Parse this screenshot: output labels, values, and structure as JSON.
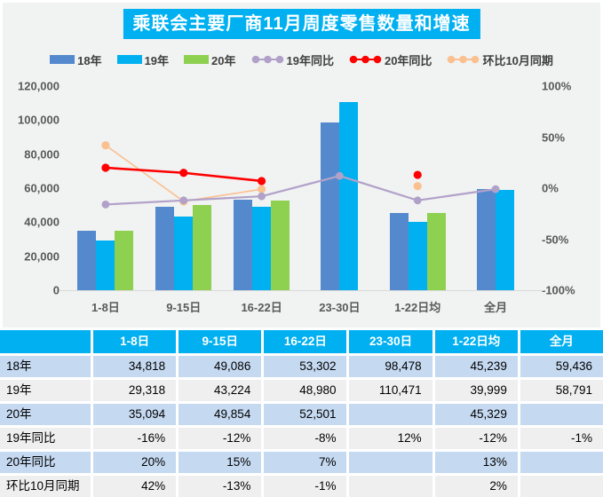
{
  "title": "乘联会主要厂商11月周度零售数量和增速",
  "colors": {
    "accent_cyan": "#00B0F0",
    "bar_18": "#5489CE",
    "bar_19": "#00B0F0",
    "bar_20": "#8ED04F",
    "line_yoy19": "#B1A1C9",
    "line_yoy20": "#FE0000",
    "line_mom": "#FAC090",
    "panel_bg": "#F1F2F2",
    "axis_text": "#595959",
    "row_blue": "#C5D9F1",
    "row_gray": "#EFEFEF"
  },
  "legend": [
    {
      "label": "18年",
      "type": "bar",
      "color": "#5489CE"
    },
    {
      "label": "19年",
      "type": "bar",
      "color": "#00B0F0"
    },
    {
      "label": "20年",
      "type": "bar",
      "color": "#8ED04F"
    },
    {
      "label": "19年同比",
      "type": "line",
      "color": "#B1A1C9"
    },
    {
      "label": "20年同比",
      "type": "line",
      "color": "#FE0000"
    },
    {
      "label": "环比10月同期",
      "type": "line",
      "color": "#FAC090"
    }
  ],
  "chart_data": {
    "type": "bar+line",
    "categories": [
      "1-8日",
      "9-15日",
      "16-22日",
      "23-30日",
      "1-22日均",
      "全月"
    ],
    "bar_series": [
      {
        "name": "18年",
        "color": "#5489CE",
        "values": [
          34818,
          49086,
          53302,
          98478,
          45239,
          59436
        ]
      },
      {
        "name": "19年",
        "color": "#00B0F0",
        "values": [
          29318,
          43224,
          48980,
          110471,
          39999,
          58791
        ]
      },
      {
        "name": "20年",
        "color": "#8ED04F",
        "values": [
          35094,
          49854,
          52501,
          null,
          45329,
          null
        ]
      }
    ],
    "line_series": [
      {
        "name": "环比10月同期",
        "color": "#FAC090",
        "width": 1.6,
        "dot": 4.6,
        "values": [
          42,
          -13,
          -1,
          null,
          2,
          null
        ]
      },
      {
        "name": "19年同比",
        "color": "#B1A1C9",
        "width": 2.2,
        "dot": 4.4,
        "values": [
          -16,
          -12,
          -8,
          12,
          -12,
          -1
        ]
      },
      {
        "name": "20年同比",
        "color": "#FE0000",
        "width": 2.6,
        "dot": 4.6,
        "values": [
          20,
          15,
          7,
          null,
          13,
          null
        ]
      }
    ],
    "y_left": {
      "ticks": [
        "120,000",
        "100,000",
        "80,000",
        "60,000",
        "40,000",
        "20,000",
        "0"
      ],
      "values": [
        120000,
        100000,
        80000,
        60000,
        40000,
        20000,
        0
      ],
      "min": 0,
      "max": 120000
    },
    "y_right": {
      "ticks": [
        "100%",
        "50%",
        "0%",
        "-50%",
        "-100%"
      ],
      "values": [
        100,
        50,
        0,
        -50,
        -100
      ],
      "min": -100,
      "max": 100
    },
    "grid": false,
    "legend_position": "top"
  },
  "table": {
    "columns": [
      "",
      "1-8日",
      "9-15日",
      "16-22日",
      "23-30日",
      "1-22日均",
      "全月"
    ],
    "rows": [
      {
        "label": "18年",
        "values": [
          "34,818",
          "49,086",
          "53,302",
          "98,478",
          "45,239",
          "59,436"
        ]
      },
      {
        "label": "19年",
        "values": [
          "29,318",
          "43,224",
          "48,980",
          "110,471",
          "39,999",
          "58,791"
        ]
      },
      {
        "label": "20年",
        "values": [
          "35,094",
          "49,854",
          "52,501",
          "",
          "45,329",
          ""
        ]
      },
      {
        "label": "19年同比",
        "values": [
          "-16%",
          "-12%",
          "-8%",
          "12%",
          "-12%",
          "-1%"
        ]
      },
      {
        "label": "20年同比",
        "values": [
          "20%",
          "15%",
          "7%",
          "",
          "13%",
          ""
        ]
      },
      {
        "label": "环比10月同期",
        "values": [
          "42%",
          "-13%",
          "-1%",
          "",
          "2%",
          ""
        ]
      }
    ]
  }
}
